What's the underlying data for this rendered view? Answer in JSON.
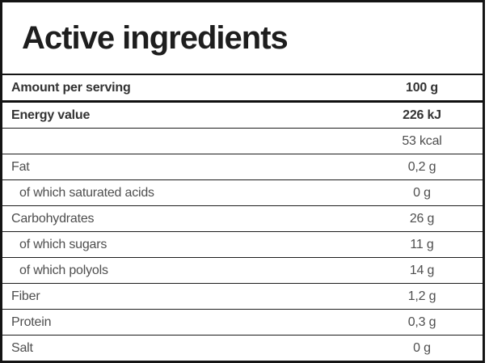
{
  "nutrition_label": {
    "title": "Active ingredients",
    "header_row": {
      "label": "Amount per serving",
      "value": "100 g"
    },
    "rows": [
      {
        "label": "Energy value",
        "value": "226 kJ"
      },
      {
        "label": "",
        "value": "53 kcal"
      },
      {
        "label": "Fat",
        "value": "0,2 g"
      },
      {
        "label": "of which saturated acids",
        "value": "0 g"
      },
      {
        "label": "Carbohydrates",
        "value": "26 g"
      },
      {
        "label": "of which sugars",
        "value": "11 g"
      },
      {
        "label": "of which polyols",
        "value": "14 g"
      },
      {
        "label": "Fiber",
        "value": "1,2 g"
      },
      {
        "label": "Protein",
        "value": "0,3 g"
      },
      {
        "label": "Salt",
        "value": "0 g"
      }
    ],
    "colors": {
      "border": "#141414",
      "title_text": "#1e1e1e",
      "bold_text": "#333333",
      "regular_text": "#4e4e4e",
      "background": "#ffffff"
    }
  }
}
